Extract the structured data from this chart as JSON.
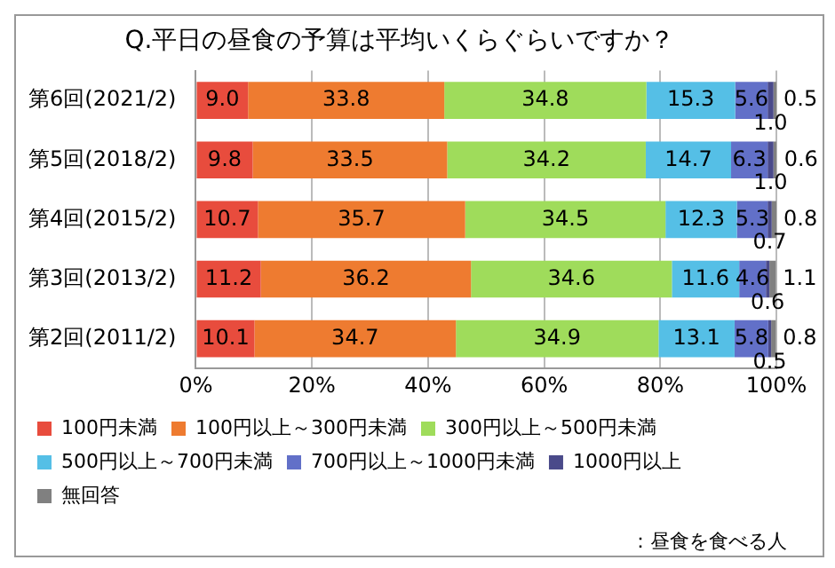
{
  "chart_data": {
    "type": "bar",
    "orientation": "horizontal",
    "stacked": true,
    "title": "Q.平日の昼食の予算は平均いくらぐらいですか？",
    "categories": [
      "第6回(2021/2)",
      "第5回(2018/2)",
      "第4回(2015/2)",
      "第3回(2013/2)",
      "第2回(2011/2)"
    ],
    "series": [
      {
        "name": "100円未満",
        "color": "#e84c3d",
        "values": [
          9.0,
          9.8,
          10.7,
          11.2,
          10.1
        ],
        "value_labels": [
          "9.0",
          "9.8",
          "10.7",
          "11.2",
          "10.1"
        ]
      },
      {
        "name": "100円以上～300円未満",
        "color": "#ee7b30",
        "values": [
          33.8,
          33.5,
          35.7,
          36.2,
          34.7
        ],
        "value_labels": [
          "33.8",
          "33.5",
          "35.7",
          "36.2",
          "34.7"
        ]
      },
      {
        "name": "300円以上～500円未満",
        "color": "#9fdc5b",
        "values": [
          34.8,
          34.2,
          34.5,
          34.6,
          34.9
        ],
        "value_labels": [
          "34.8",
          "34.2",
          "34.5",
          "34.6",
          "34.9"
        ]
      },
      {
        "name": "500円以上～700円未満",
        "color": "#55bfe6",
        "values": [
          15.3,
          14.7,
          12.3,
          11.6,
          13.1
        ],
        "value_labels": [
          "15.3",
          "14.7",
          "12.3",
          "11.6",
          "13.1"
        ]
      },
      {
        "name": "700円以上～1000円未満",
        "color": "#6270c8",
        "values": [
          5.6,
          6.3,
          5.3,
          4.6,
          5.8
        ],
        "value_labels": [
          "5.6",
          "6.3",
          "5.3",
          "4.6",
          "5.8"
        ]
      },
      {
        "name": "1000円以上",
        "color": "#4a4a8a",
        "values": [
          1.0,
          1.0,
          0.7,
          0.6,
          0.5
        ],
        "value_labels": [
          "1.0",
          "1.0",
          "0.7",
          "0.6",
          "0.5"
        ]
      },
      {
        "name": "無回答",
        "color": "#808080",
        "values": [
          0.5,
          0.6,
          0.8,
          1.1,
          0.8
        ],
        "value_labels": [
          "0.5",
          "0.6",
          "0.8",
          "1.1",
          "0.8"
        ]
      }
    ],
    "xlim": [
      0,
      100
    ],
    "xticks": [
      {
        "value": 0,
        "label": "0%"
      },
      {
        "value": 20,
        "label": "20%"
      },
      {
        "value": 40,
        "label": "40%"
      },
      {
        "value": 60,
        "label": "60%"
      },
      {
        "value": 80,
        "label": "80%"
      },
      {
        "value": 100,
        "label": "100%"
      }
    ],
    "grid": "x",
    "legend": "bottom",
    "annotations": [
      "：昼食を食べる人"
    ]
  }
}
